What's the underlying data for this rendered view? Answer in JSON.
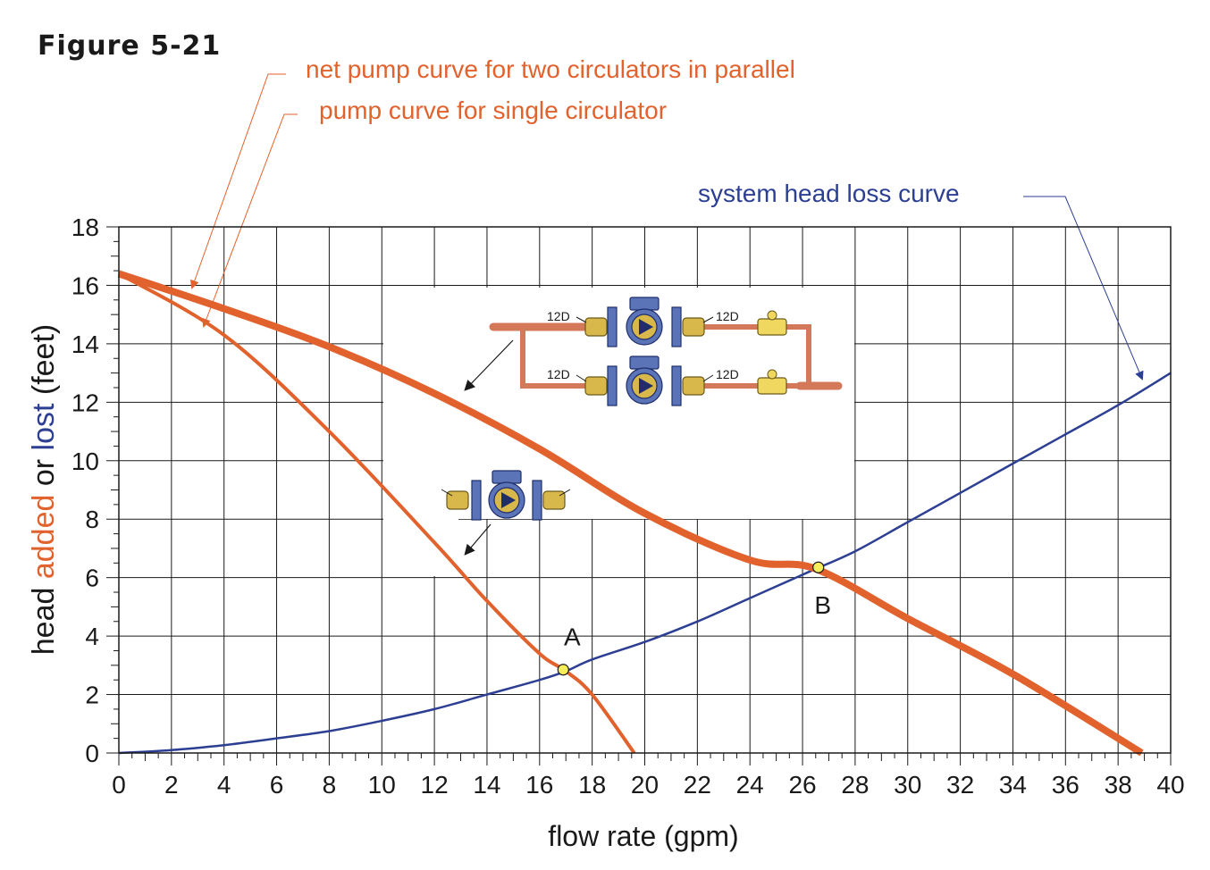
{
  "figure_label": "Figure 5-21",
  "annotations": {
    "parallel_curve_label": "net pump curve for two circulators in parallel",
    "single_curve_label": "pump curve for single circulator",
    "system_curve_label": "system head loss curve",
    "valve_label": "12D"
  },
  "colors": {
    "pump": "#e2622d",
    "system": "#2d3f93",
    "grid": "#1a1a1a",
    "point_fill": "#f5ee5a",
    "pipe": "#d4785a",
    "valve_brass": "#d8b84a",
    "pump_body": "#5b74b8"
  },
  "chart_data": {
    "type": "line",
    "title": "",
    "xlabel": "flow rate (gpm)",
    "ylabel_parts": [
      "head ",
      "added",
      " or ",
      "lost",
      " (feet)"
    ],
    "xlim": [
      0,
      40
    ],
    "ylim": [
      0,
      18
    ],
    "xticks": [
      "0",
      "2",
      "4",
      "6",
      "8",
      "10",
      "12",
      "14",
      "16",
      "18",
      "20",
      "22",
      "24",
      "26",
      "28",
      "30",
      "32",
      "34",
      "36",
      "38",
      "40"
    ],
    "yticks": [
      "0",
      "2",
      "4",
      "6",
      "8",
      "10",
      "12",
      "14",
      "16",
      "18"
    ],
    "grid": true,
    "series": [
      {
        "name": "pump curve for single circulator",
        "color": "#e2622d",
        "width": "medium",
        "x": [
          0,
          4,
          8,
          12,
          14,
          16,
          17,
          18,
          19.6
        ],
        "y": [
          16.4,
          14.3,
          11.0,
          7.2,
          5.2,
          3.4,
          2.8,
          2.0,
          0
        ]
      },
      {
        "name": "net pump curve for two circulators in parallel",
        "color": "#e2622d",
        "width": "thick",
        "x": [
          0,
          4,
          8,
          12,
          16,
          20,
          24,
          26.5,
          30,
          34,
          38.9
        ],
        "y": [
          16.4,
          15.2,
          13.9,
          12.3,
          10.4,
          8.2,
          6.6,
          6.3,
          4.6,
          2.7,
          0
        ]
      },
      {
        "name": "system head loss curve",
        "color": "#2d3f93",
        "width": "thin",
        "x": [
          0,
          2,
          4,
          6,
          8,
          10,
          12,
          14,
          16,
          17,
          18,
          20,
          22,
          24,
          26,
          26.5,
          28,
          30,
          32,
          34,
          36,
          38,
          40
        ],
        "y": [
          0,
          0.1,
          0.27,
          0.5,
          0.75,
          1.1,
          1.5,
          2.0,
          2.5,
          2.8,
          3.2,
          3.8,
          4.5,
          5.3,
          6.1,
          6.3,
          6.9,
          7.9,
          8.9,
          9.9,
          10.9,
          11.9,
          13.0
        ]
      }
    ],
    "points": [
      {
        "label": "A",
        "x": 16.9,
        "y": 2.85
      },
      {
        "label": "B",
        "x": 26.6,
        "y": 6.35
      }
    ]
  }
}
